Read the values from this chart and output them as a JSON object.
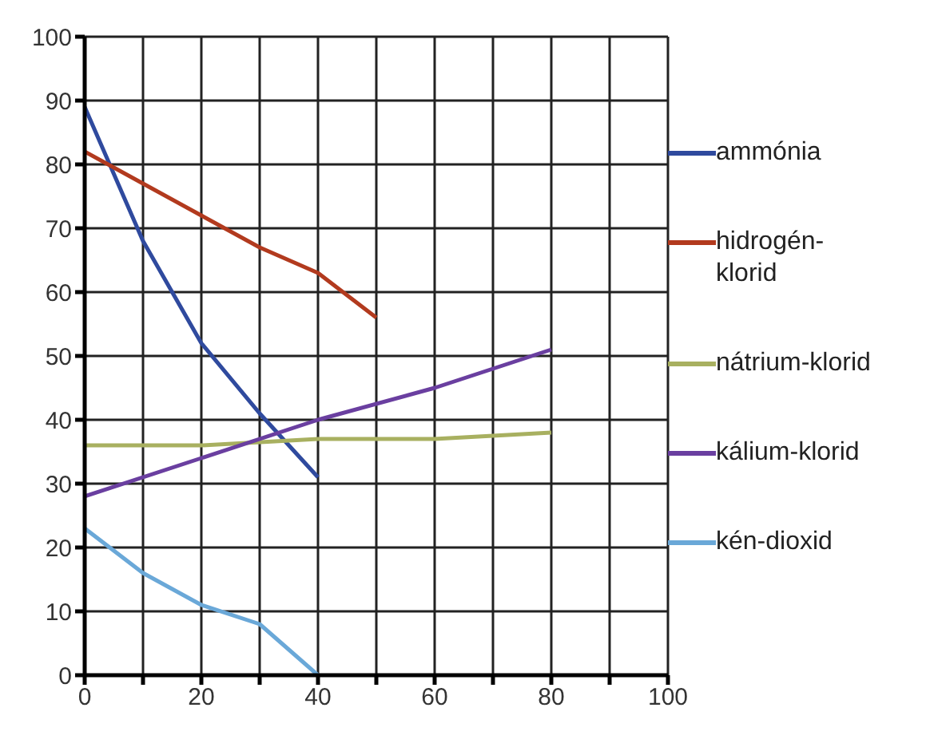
{
  "chart_data": {
    "type": "line",
    "series": [
      {
        "name": "ammónia",
        "color": "#2f4a9e",
        "x": [
          0,
          10,
          20,
          30,
          40
        ],
        "values": [
          89,
          68,
          52,
          41,
          31
        ]
      },
      {
        "name": "hidrogén-klorid",
        "color": "#b23a1e",
        "x": [
          0,
          10,
          20,
          30,
          40,
          50
        ],
        "values": [
          82,
          77,
          72,
          67,
          63,
          56
        ]
      },
      {
        "name": "nátrium-klorid",
        "color": "#a8b060",
        "x": [
          0,
          20,
          40,
          60,
          80
        ],
        "values": [
          36,
          36,
          37,
          37,
          38
        ]
      },
      {
        "name": "kálium-klorid",
        "color": "#6a3fa0",
        "x": [
          0,
          20,
          40,
          60,
          80
        ],
        "values": [
          28,
          34,
          40,
          45,
          51
        ]
      },
      {
        "name": "kén-dioxid",
        "color": "#6aa8d8",
        "x": [
          0,
          10,
          20,
          30,
          40
        ],
        "values": [
          23,
          16,
          11,
          8,
          0
        ]
      }
    ],
    "xlim": [
      0,
      100
    ],
    "xticks": [
      0,
      {
        "value": 10,
        "label": null
      },
      20,
      {
        "value": 30,
        "label": null
      },
      40,
      {
        "value": 50,
        "label": null
      },
      60,
      {
        "value": 70,
        "label": null
      },
      80,
      {
        "value": 90,
        "label": null
      },
      100
    ],
    "ylim": [
      0,
      100
    ],
    "yticks": [
      0,
      10,
      20,
      30,
      40,
      50,
      60,
      70,
      80,
      90,
      100
    ],
    "grid": true,
    "legend": "right",
    "marker": "none",
    "line_style": "solid"
  }
}
